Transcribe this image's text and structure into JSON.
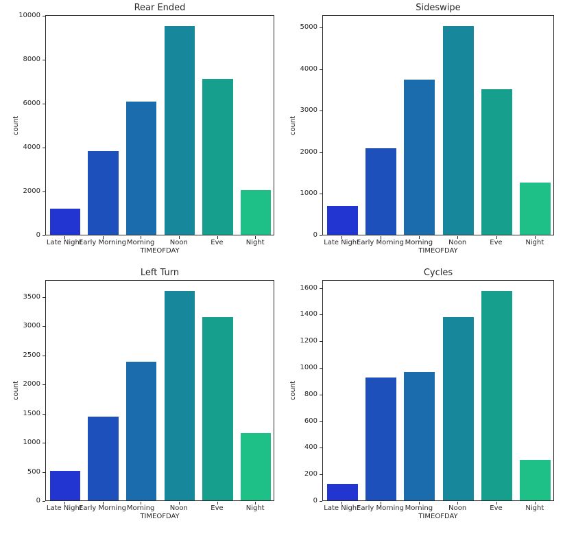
{
  "figure": {
    "background": "#ffffff",
    "text_color": "#262626",
    "layout": "2x2 subplot grid"
  },
  "palette": [
    "#2235d1",
    "#1e50bb",
    "#1b6cad",
    "#17879b",
    "#169f8c",
    "#1fc087"
  ],
  "chart_data": [
    {
      "type": "bar",
      "title": "Rear Ended",
      "xlabel": "TIMEOFDAY",
      "ylabel": "count",
      "categories": [
        "Late Night",
        "Early Morning",
        "Morning",
        "Noon",
        "Eve",
        "Night"
      ],
      "values": [
        1200,
        3850,
        6100,
        9550,
        7150,
        2050
      ],
      "ylim": [
        0,
        10030
      ],
      "yticks": [
        0,
        2000,
        4000,
        6000,
        8000,
        10000
      ],
      "grid": false,
      "legend": "none"
    },
    {
      "type": "bar",
      "title": "Sideswipe",
      "xlabel": "TIMEOFDAY",
      "ylabel": "count",
      "categories": [
        "Late Night",
        "Early Morning",
        "Morning",
        "Noon",
        "Eve",
        "Night"
      ],
      "values": [
        700,
        2100,
        3760,
        5050,
        3530,
        1270
      ],
      "ylim": [
        0,
        5305
      ],
      "yticks": [
        0,
        1000,
        2000,
        3000,
        4000,
        5000
      ],
      "grid": false,
      "legend": "none"
    },
    {
      "type": "bar",
      "title": "Left Turn",
      "xlabel": "TIMEOFDAY",
      "ylabel": "count",
      "categories": [
        "Late Night",
        "Early Morning",
        "Morning",
        "Noon",
        "Eve",
        "Night"
      ],
      "values": [
        510,
        1450,
        2390,
        3610,
        3160,
        1160
      ],
      "ylim": [
        0,
        3790
      ],
      "yticks": [
        0,
        500,
        1000,
        1500,
        2000,
        2500,
        3000,
        3500
      ],
      "grid": false,
      "legend": "none"
    },
    {
      "type": "bar",
      "title": "Cycles",
      "xlabel": "TIMEOFDAY",
      "ylabel": "count",
      "categories": [
        "Late Night",
        "Early Morning",
        "Morning",
        "Noon",
        "Eve",
        "Night"
      ],
      "values": [
        125,
        930,
        970,
        1385,
        1580,
        305
      ],
      "ylim": [
        0,
        1660
      ],
      "yticks": [
        0,
        200,
        400,
        600,
        800,
        1000,
        1200,
        1400,
        1600
      ],
      "grid": false,
      "legend": "none"
    }
  ]
}
